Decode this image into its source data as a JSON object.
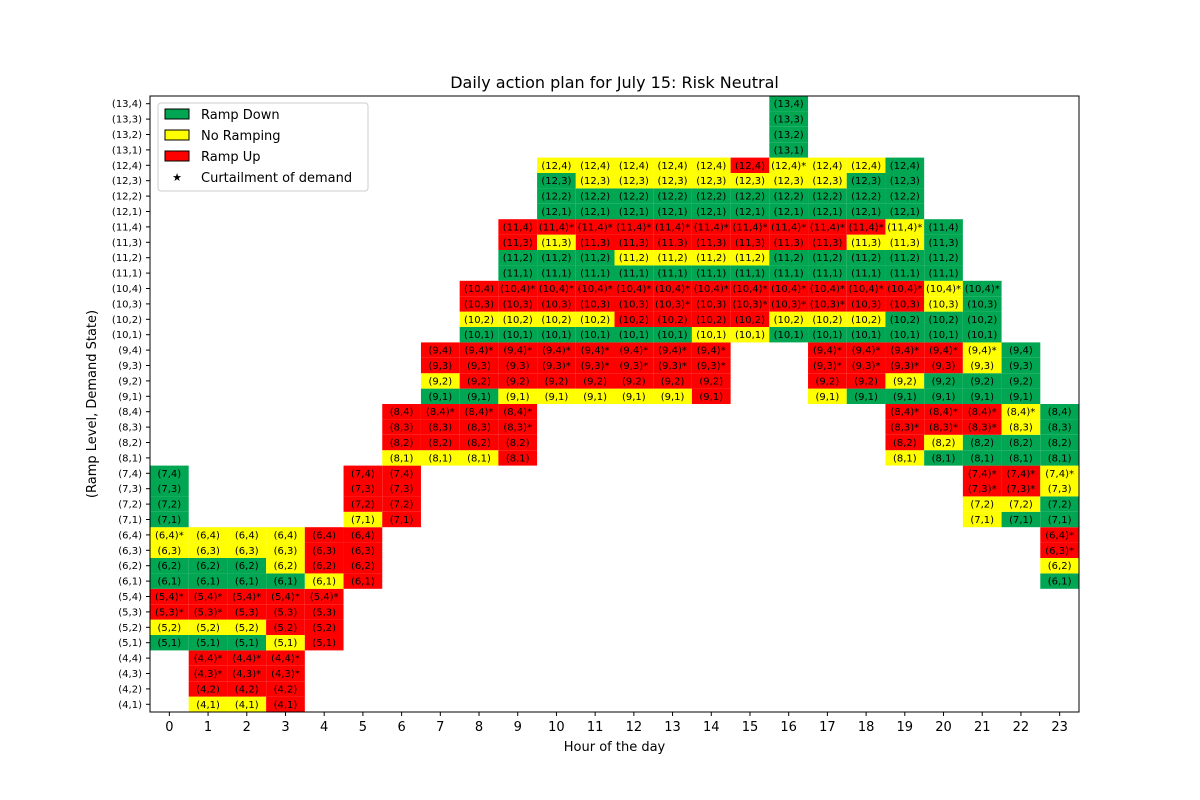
{
  "chart_data": {
    "type": "heatmap",
    "title": "Daily action plan for July 15: Risk Neutral",
    "xlabel": "Hour of the day",
    "ylabel": "(Ramp Level, Demand State)",
    "x": [
      0,
      1,
      2,
      3,
      4,
      5,
      6,
      7,
      8,
      9,
      10,
      11,
      12,
      13,
      14,
      15,
      16,
      17,
      18,
      19,
      20,
      21,
      22,
      23
    ],
    "y_labels": [
      "(4,1)",
      "(4,2)",
      "(4,3)",
      "(4,4)",
      "(5,1)",
      "(5,2)",
      "(5,3)",
      "(5,4)",
      "(6,1)",
      "(6,2)",
      "(6,3)",
      "(6,4)",
      "(7,1)",
      "(7,2)",
      "(7,3)",
      "(7,4)",
      "(8,1)",
      "(8,2)",
      "(8,3)",
      "(8,4)",
      "(9,1)",
      "(9,2)",
      "(9,3)",
      "(9,4)",
      "(10,1)",
      "(10,2)",
      "(10,3)",
      "(10,4)",
      "(11,1)",
      "(11,2)",
      "(11,3)",
      "(11,4)",
      "(12,1)",
      "(12,2)",
      "(12,3)",
      "(12,4)",
      "(13,1)",
      "(13,2)",
      "(13,3)",
      "(13,4)"
    ],
    "colors": {
      "D": "#00a651",
      "N": "#ffff00",
      "U": "#ff0000"
    },
    "legend": [
      {
        "key": "D",
        "label": "Ramp Down",
        "color": "#00a651"
      },
      {
        "key": "N",
        "label": "No Ramping",
        "color": "#ffff00"
      },
      {
        "key": "U",
        "label": "Ramp Up",
        "color": "#ff0000"
      },
      {
        "key": "star",
        "marker": "★",
        "label": "Curtailment of demand"
      }
    ],
    "legend_position": "top-left",
    "columns": {
      "0": [
        "5,1D",
        "5,2N",
        "5,3U*",
        "5,4U*",
        "6,1D",
        "6,2D",
        "6,3N",
        "6,4N*",
        "7,1D",
        "7,2D",
        "7,3D",
        "7,4D"
      ],
      "1": [
        "4,1N",
        "4,2U",
        "4,3U*",
        "4,4U*",
        "5,1D",
        "5,2N",
        "5,3U*",
        "5,4U*",
        "6,1D",
        "6,2D",
        "6,3N",
        "6,4N"
      ],
      "2": [
        "4,1N",
        "4,2U",
        "4,3U*",
        "4,4U*",
        "5,1D",
        "5,2N",
        "5,3U",
        "5,4U*",
        "6,1D",
        "6,2D",
        "6,3N",
        "6,4N"
      ],
      "3": [
        "4,1U",
        "4,2U",
        "4,3U*",
        "4,4U*",
        "5,1N",
        "5,2U",
        "5,3U",
        "5,4U*",
        "6,1D",
        "6,2N",
        "6,3N",
        "6,4N"
      ],
      "4": [
        "5,1U",
        "5,2U",
        "5,3U",
        "5,4U*",
        "6,1N",
        "6,2U",
        "6,3U",
        "6,4U"
      ],
      "5": [
        "6,1U",
        "6,2U",
        "6,3U",
        "6,4U",
        "7,1N",
        "7,2U",
        "7,3U",
        "7,4U"
      ],
      "6": [
        "7,1U",
        "7,2U",
        "7,3U",
        "7,4U",
        "8,1N",
        "8,2U",
        "8,3U",
        "8,4U"
      ],
      "7": [
        "8,1N",
        "8,2U",
        "8,3U",
        "8,4U*",
        "9,1D",
        "9,2N",
        "9,3U",
        "9,4U"
      ],
      "8": [
        "8,1N",
        "8,2U",
        "8,3U",
        "8,4U*",
        "9,1D",
        "9,2U",
        "9,3U",
        "9,4U*",
        "10,1D",
        "10,2N",
        "10,3U",
        "10,4U"
      ],
      "9": [
        "8,1U",
        "8,2U",
        "8,3U*",
        "8,4U*",
        "9,1N",
        "9,2U",
        "9,3U",
        "9,4U*",
        "10,1D",
        "10,2N",
        "10,3U",
        "10,4U*",
        "11,1D",
        "11,2D",
        "11,3U",
        "11,4U"
      ],
      "10": [
        "9,1N",
        "9,2U",
        "9,3U*",
        "9,4U*",
        "10,1D",
        "10,2N",
        "10,3U",
        "10,4U*",
        "11,1D",
        "11,2D",
        "11,3N",
        "11,4U*",
        "12,1D",
        "12,2D",
        "12,3D",
        "12,4N"
      ],
      "11": [
        "9,1N",
        "9,2U",
        "9,3U*",
        "9,4U*",
        "10,1D",
        "10,2N",
        "10,3U",
        "10,4U*",
        "11,1D",
        "11,2D",
        "11,3U",
        "11,4U*",
        "12,1D",
        "12,2D",
        "12,3N",
        "12,4N"
      ],
      "12": [
        "9,1N",
        "9,2U",
        "9,3U*",
        "9,4U*",
        "10,1D",
        "10,2U",
        "10,3U",
        "10,4U*",
        "11,1D",
        "11,2N",
        "11,3U",
        "11,4U*",
        "12,1D",
        "12,2D",
        "12,3N",
        "12,4N"
      ],
      "13": [
        "9,1N",
        "9,2U",
        "9,3U*",
        "9,4U*",
        "10,1D",
        "10,2U",
        "10,3U*",
        "10,4U*",
        "11,1D",
        "11,2N",
        "11,3U",
        "11,4U*",
        "12,1D",
        "12,2D",
        "12,3N",
        "12,4N"
      ],
      "14": [
        "9,1U",
        "9,2U",
        "9,3U*",
        "9,4U*",
        "10,1N",
        "10,2U",
        "10,3U",
        "10,4U*",
        "11,1D",
        "11,2N",
        "11,3U",
        "11,4U*",
        "12,1D",
        "12,2D",
        "12,3N",
        "12,4N"
      ],
      "15": [
        "10,1N",
        "10,2U",
        "10,3U*",
        "10,4U*",
        "11,1D",
        "11,2N",
        "11,3U",
        "11,4U*",
        "12,1D",
        "12,2D",
        "12,3N",
        "12,4U"
      ],
      "16": [
        "10,1D",
        "10,2N",
        "10,3U*",
        "10,4U*",
        "11,1D",
        "11,2D",
        "11,3U",
        "11,4U*",
        "12,1D",
        "12,2D",
        "12,3N",
        "12,4N*",
        "13,1D",
        "13,2D",
        "13,3D",
        "13,4D"
      ],
      "17": [
        "9,1N",
        "9,2U",
        "9,3U*",
        "9,4U*",
        "10,1D",
        "10,2N",
        "10,3U*",
        "10,4U*",
        "11,1D",
        "11,2D",
        "11,3U",
        "11,4U*",
        "12,1D",
        "12,2D",
        "12,3N",
        "12,4N"
      ],
      "18": [
        "9,1D",
        "9,2U",
        "9,3U*",
        "9,4U*",
        "10,1D",
        "10,2N",
        "10,3U",
        "10,4U*",
        "11,1D",
        "11,2D",
        "11,3N",
        "11,4U*",
        "12,1D",
        "12,2D",
        "12,3D",
        "12,4N"
      ],
      "19": [
        "8,1N",
        "8,2U",
        "8,3U*",
        "8,4U*",
        "9,1D",
        "9,2N",
        "9,3U*",
        "9,4U*",
        "10,1D",
        "10,2D",
        "10,3U",
        "10,4U*",
        "11,1D",
        "11,2D",
        "11,3N",
        "11,4N*",
        "12,1D",
        "12,2D",
        "12,3D",
        "12,4D"
      ],
      "20": [
        "8,1D",
        "8,2N",
        "8,3U*",
        "8,4U*",
        "9,1D",
        "9,2D",
        "9,3U",
        "9,4U*",
        "10,1D",
        "10,2D",
        "10,3N",
        "10,4N*",
        "11,1D",
        "11,2D",
        "11,3D",
        "11,4D"
      ],
      "21": [
        "7,1N",
        "7,2N",
        "7,3U*",
        "7,4U*",
        "8,1D",
        "8,2D",
        "8,3U*",
        "8,4U*",
        "9,1D",
        "9,2D",
        "9,3N",
        "9,4N*",
        "10,1D",
        "10,2D",
        "10,3D",
        "10,4D*"
      ],
      "22": [
        "7,1D",
        "7,2N",
        "7,3U*",
        "7,4U*",
        "8,1D",
        "8,2D",
        "8,3N",
        "8,4N*",
        "9,1D",
        "9,2D",
        "9,3D",
        "9,4D"
      ],
      "23": [
        "6,1D",
        "6,2N",
        "6,3U*",
        "6,4U*",
        "7,1D",
        "7,2D",
        "7,3N",
        "7,4N*",
        "8,1D",
        "8,2D",
        "8,3D",
        "8,4D"
      ]
    }
  }
}
